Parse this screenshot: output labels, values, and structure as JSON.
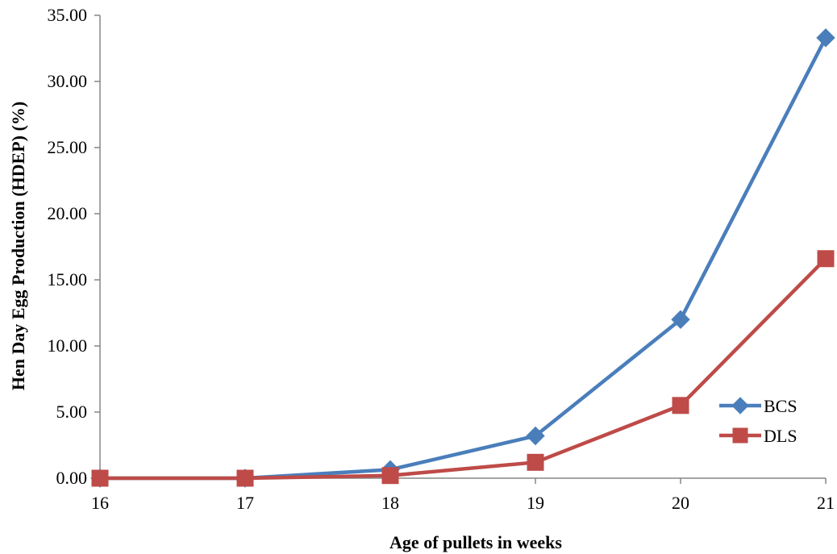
{
  "chart_data": {
    "type": "line",
    "xlabel": "Age of pullets  in weeks",
    "ylabel": "Hen Day Egg Production (HDEP) (%)",
    "x": [
      16,
      17,
      18,
      19,
      20,
      21
    ],
    "ylim": [
      0,
      35
    ],
    "yticks": [
      "0.00",
      "5.00",
      "10.00",
      "15.00",
      "20.00",
      "25.00",
      "30.00",
      "35.00"
    ],
    "grid": false,
    "legend_position": "right",
    "series": [
      {
        "name": "BCS",
        "marker": "diamond",
        "color": "#4a7ebb",
        "values": [
          0.0,
          0.0,
          0.65,
          3.2,
          12.0,
          33.3
        ]
      },
      {
        "name": "DLS",
        "marker": "square",
        "color": "#be4b48",
        "values": [
          0.0,
          0.0,
          0.2,
          1.2,
          5.5,
          16.6
        ]
      }
    ]
  }
}
